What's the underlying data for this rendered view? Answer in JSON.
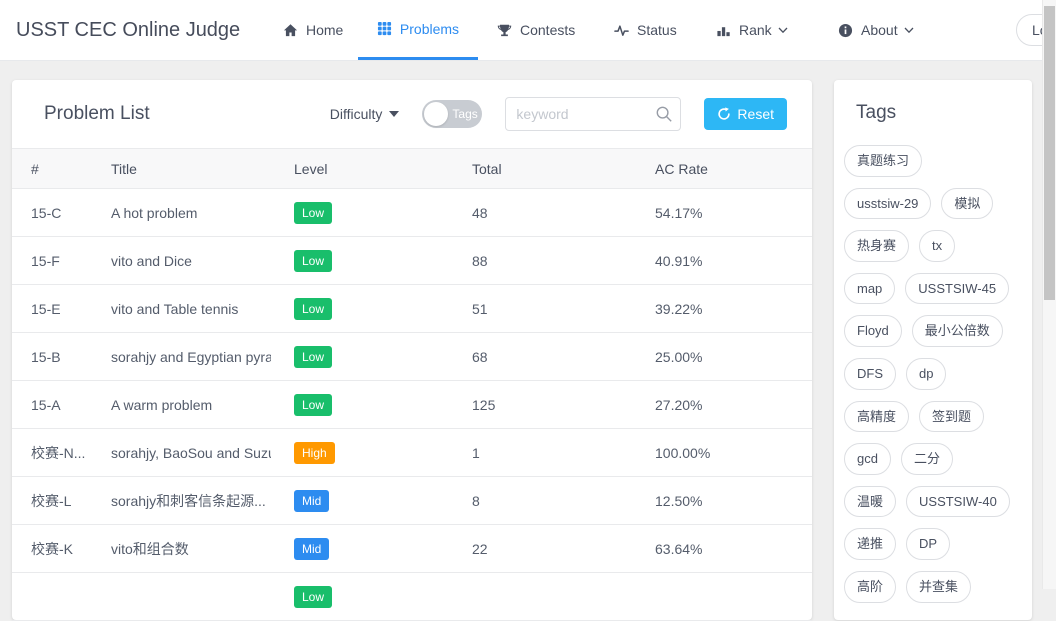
{
  "colors": {
    "accent": "#2d8cf0",
    "info": "#2db7f5",
    "level": {
      "Low": "#19be6b",
      "Mid": "#2d8cf0",
      "High": "#ff9900"
    }
  },
  "navbar": {
    "brand": "USST CEC Online Judge",
    "items": [
      {
        "id": "home",
        "label": "Home",
        "icon": "home-icon",
        "active": false,
        "caret": false
      },
      {
        "id": "problems",
        "label": "Problems",
        "icon": "grid-icon",
        "active": true,
        "caret": false
      },
      {
        "id": "contests",
        "label": "Contests",
        "icon": "trophy-icon",
        "active": false,
        "caret": false
      },
      {
        "id": "status",
        "label": "Status",
        "icon": "pulse-icon",
        "active": false,
        "caret": false
      },
      {
        "id": "rank",
        "label": "Rank",
        "icon": "bar-chart-icon",
        "active": false,
        "caret": true
      },
      {
        "id": "about",
        "label": "About",
        "icon": "info-icon",
        "active": false,
        "caret": true
      }
    ],
    "login_label": "Login"
  },
  "problem_list": {
    "title": "Problem List",
    "difficulty_label": "Difficulty",
    "tags_toggle_label": "Tags",
    "search_placeholder": "keyword",
    "reset_label": "Reset",
    "table": {
      "headers": [
        "#",
        "Title",
        "Level",
        "Total",
        "AC Rate"
      ],
      "rows": [
        {
          "id": "15-C",
          "title": "A hot problem",
          "level": "Low",
          "total": "48",
          "ac_rate": "54.17%"
        },
        {
          "id": "15-F",
          "title": "vito and Dice",
          "level": "Low",
          "total": "88",
          "ac_rate": "40.91%"
        },
        {
          "id": "15-E",
          "title": "vito and Table tennis",
          "level": "Low",
          "total": "51",
          "ac_rate": "39.22%"
        },
        {
          "id": "15-B",
          "title": "sorahjy and Egyptian pyra",
          "level": "Low",
          "total": "68",
          "ac_rate": "25.00%"
        },
        {
          "id": "15-A",
          "title": "A warm problem",
          "level": "Low",
          "total": "125",
          "ac_rate": "27.20%"
        },
        {
          "id": "校赛-N...",
          "title": "sorahjy, BaoSou and Suzu",
          "level": "High",
          "total": "1",
          "ac_rate": "100.00%"
        },
        {
          "id": "校赛-L",
          "title": "sorahjy和刺客信条起源...",
          "level": "Mid",
          "total": "8",
          "ac_rate": "12.50%"
        },
        {
          "id": "校赛-K",
          "title": "vito和组合数",
          "level": "Mid",
          "total": "22",
          "ac_rate": "63.64%"
        },
        {
          "id": "",
          "title": "",
          "level": "Low",
          "total": "",
          "ac_rate": ""
        }
      ]
    }
  },
  "tags_panel": {
    "title": "Tags",
    "rows": [
      [
        "真题练习"
      ],
      [
        "usstsiw-29",
        "模拟"
      ],
      [
        "热身赛",
        "tx"
      ],
      [
        "map",
        "USSTSIW-45"
      ],
      [
        "Floyd",
        "最小公倍数"
      ],
      [
        "DFS",
        "dp"
      ],
      [
        "高精度",
        "签到题"
      ],
      [
        "gcd",
        "二分"
      ],
      [
        "温暖",
        "USSTSIW-40"
      ],
      [
        "递推",
        "DP"
      ],
      [
        "高阶",
        "并查集"
      ]
    ]
  }
}
